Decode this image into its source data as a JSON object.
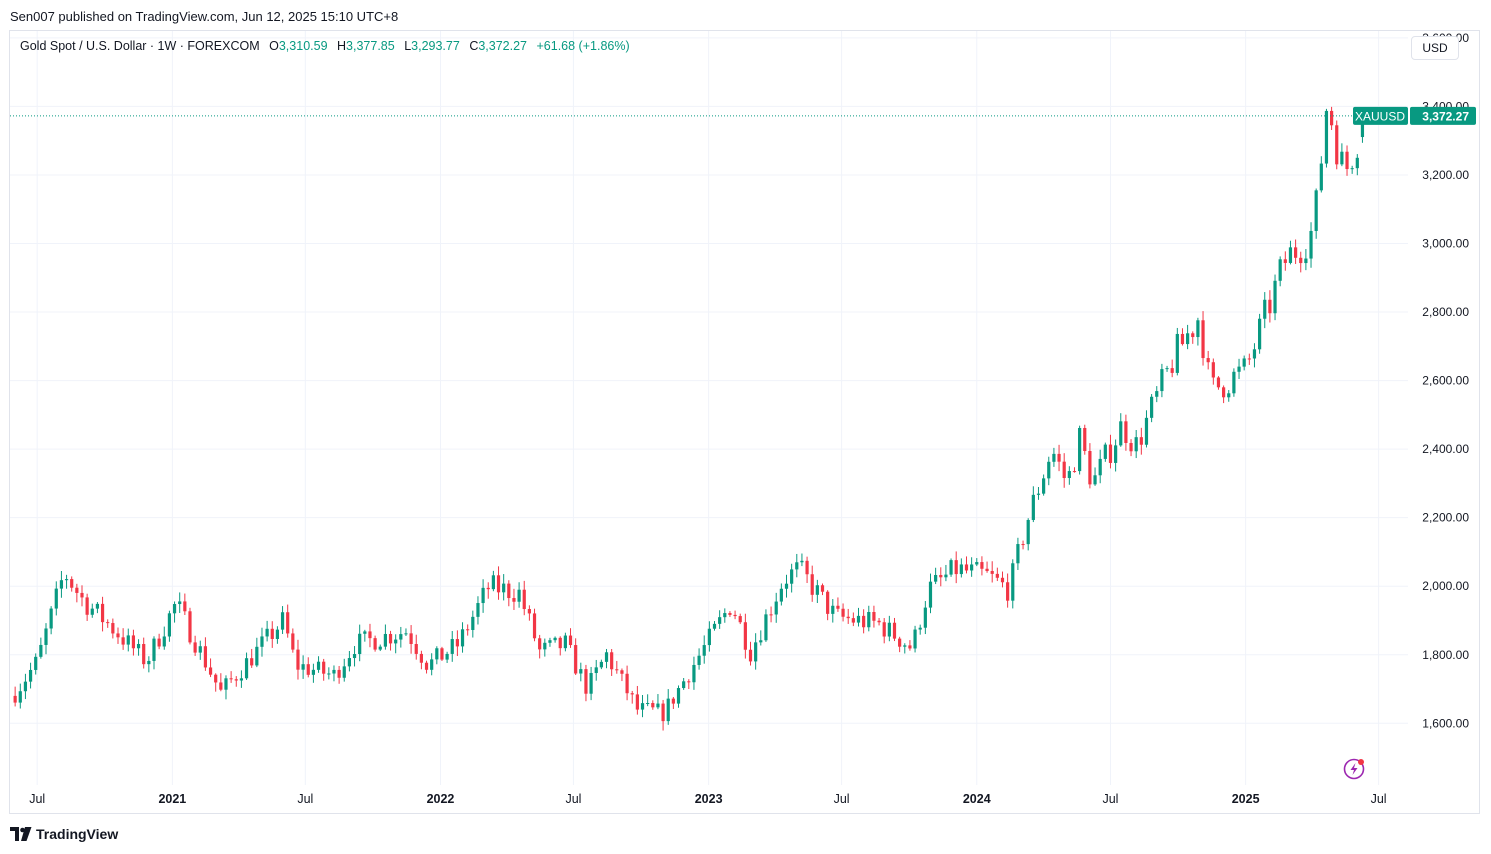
{
  "header": {
    "published": "Sen007 published on TradingView.com, Jun 12, 2025 15:10 UTC+8"
  },
  "legend": {
    "symbol": "Gold Spot / U.S. Dollar · 1W · FOREXCOM",
    "o_label": "O",
    "o_value": "3,310.59",
    "h_label": "H",
    "h_value": "3,377.85",
    "l_label": "L",
    "l_value": "3,293.77",
    "c_label": "C",
    "c_value": "3,372.27",
    "change": "+61.68 (+1.86%)"
  },
  "currency": "USD",
  "price_tag": {
    "ticker": "XAUUSD",
    "price": "3,372.27"
  },
  "footer": {
    "brand": "TradingView"
  },
  "colors": {
    "up": "#089981",
    "down": "#f23645",
    "grid": "#f0f3fa",
    "text": "#131722"
  },
  "chart_data": {
    "type": "candlestick",
    "interval": "1W",
    "y_ticks": [
      1600,
      1800,
      2000,
      2200,
      2400,
      2600,
      2800,
      3000,
      3200,
      3400,
      3600
    ],
    "y_tick_labels": [
      "1,600.00",
      "1,800.00",
      "2,000.00",
      "2,200.00",
      "2,400.00",
      "2,600.00",
      "2,800.00",
      "3,000.00",
      "3,200.00",
      "3,400.00",
      "3,600.00"
    ],
    "ylim": [
      1420,
      3620
    ],
    "x_labels": [
      {
        "label": "Jul",
        "date": "2020-07-01",
        "bold": false
      },
      {
        "label": "2021",
        "date": "2021-01-01",
        "bold": true
      },
      {
        "label": "Jul",
        "date": "2021-07-01",
        "bold": false
      },
      {
        "label": "2022",
        "date": "2022-01-01",
        "bold": true
      },
      {
        "label": "Jul",
        "date": "2022-07-01",
        "bold": false
      },
      {
        "label": "2023",
        "date": "2023-01-01",
        "bold": true
      },
      {
        "label": "Jul",
        "date": "2023-07-01",
        "bold": false
      },
      {
        "label": "2024",
        "date": "2024-01-01",
        "bold": true
      },
      {
        "label": "Jul",
        "date": "2024-07-01",
        "bold": false
      },
      {
        "label": "2025",
        "date": "2025-01-01",
        "bold": true
      },
      {
        "label": "Jul",
        "date": "2025-07-01",
        "bold": false
      }
    ],
    "x_range": [
      "2020-05-25",
      "2025-08-10"
    ],
    "last_price": 3372.27,
    "close_path": [
      [
        "2020-06-01",
        1690
      ],
      [
        "2020-07-01",
        1780
      ],
      [
        "2020-08-07",
        2040
      ],
      [
        "2020-09-01",
        1960
      ],
      [
        "2020-10-01",
        1900
      ],
      [
        "2020-11-27",
        1780
      ],
      [
        "2021-01-06",
        1950
      ],
      [
        "2021-03-08",
        1690
      ],
      [
        "2021-06-01",
        1900
      ],
      [
        "2021-06-18",
        1770
      ],
      [
        "2021-08-09",
        1740
      ],
      [
        "2021-09-06",
        1830
      ],
      [
        "2021-11-16",
        1870
      ],
      [
        "2021-12-15",
        1770
      ],
      [
        "2022-01-25",
        1830
      ],
      [
        "2022-03-08",
        2000
      ],
      [
        "2022-04-18",
        1980
      ],
      [
        "2022-05-16",
        1810
      ],
      [
        "2022-06-20",
        1830
      ],
      [
        "2022-07-20",
        1700
      ],
      [
        "2022-08-15",
        1800
      ],
      [
        "2022-09-26",
        1640
      ],
      [
        "2022-11-01",
        1630
      ],
      [
        "2022-12-20",
        1800
      ],
      [
        "2023-02-01",
        1950
      ],
      [
        "2023-02-27",
        1810
      ],
      [
        "2023-04-13",
        2020
      ],
      [
        "2023-05-04",
        2050
      ],
      [
        "2023-06-23",
        1910
      ],
      [
        "2023-08-21",
        1890
      ],
      [
        "2023-10-05",
        1820
      ],
      [
        "2023-10-27",
        1990
      ],
      [
        "2023-12-04",
        2050
      ],
      [
        "2024-01-15",
        2030
      ],
      [
        "2024-02-14",
        1990
      ],
      [
        "2024-03-08",
        2180
      ],
      [
        "2024-04-12",
        2400
      ],
      [
        "2024-05-03",
        2300
      ],
      [
        "2024-05-20",
        2430
      ],
      [
        "2024-06-07",
        2300
      ],
      [
        "2024-07-17",
        2470
      ],
      [
        "2024-08-05",
        2410
      ],
      [
        "2024-09-26",
        2670
      ],
      [
        "2024-10-30",
        2790
      ],
      [
        "2024-11-14",
        2570
      ],
      [
        "2025-01-01",
        2630
      ],
      [
        "2025-02-24",
        2950
      ],
      [
        "2025-04-04",
        3040
      ],
      [
        "2025-04-22",
        3420
      ],
      [
        "2025-05-15",
        3200
      ],
      [
        "2025-06-12",
        3372.27
      ]
    ],
    "last_candle": {
      "date": "2025-06-09",
      "open": 3310.59,
      "high": 3377.85,
      "low": 3293.77,
      "close": 3372.27
    }
  }
}
